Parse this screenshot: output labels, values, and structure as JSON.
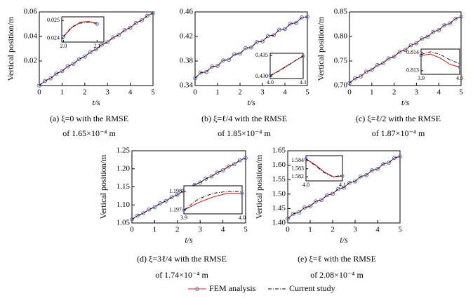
{
  "legend": [
    "FEM analysis",
    "Current study"
  ],
  "chart_data": [
    {
      "type": "line",
      "ylabel": "Vertical position/m",
      "xlabel": "t/s",
      "caption": [
        "(a) ξ=0 with the RMSE",
        "of 1.65×10⁻⁴ m"
      ],
      "xlim": [
        0,
        5
      ],
      "xticks": [
        0,
        1,
        2,
        3,
        4,
        5
      ],
      "ylim": [
        0,
        0.06
      ],
      "yticks": [
        0.02,
        0.04,
        0.06
      ],
      "x": [
        0,
        0.25,
        0.5,
        0.75,
        1,
        1.25,
        1.5,
        1.75,
        2,
        2.25,
        2.5,
        2.75,
        3,
        3.25,
        3.5,
        3.75,
        4,
        4.25,
        4.5,
        4.75,
        5
      ],
      "series": [
        {
          "color": "#d62728",
          "marker_color": "#5470c6",
          "values": [
            0,
            0.0038,
            0.0059,
            0.0097,
            0.0118,
            0.0156,
            0.0177,
            0.0215,
            0.0236,
            0.0274,
            0.0295,
            0.0333,
            0.0354,
            0.0392,
            0.0413,
            0.0451,
            0.0472,
            0.051,
            0.0531,
            0.0569,
            0.059
          ]
        },
        {
          "color": "#000000",
          "dash": "dash-dot",
          "values": [
            0,
            0.0038,
            0.0059,
            0.0097,
            0.0118,
            0.0156,
            0.0177,
            0.0215,
            0.0236,
            0.0274,
            0.0295,
            0.0333,
            0.0354,
            0.0392,
            0.0413,
            0.0451,
            0.0472,
            0.051,
            0.0531,
            0.0569,
            0.059
          ]
        }
      ],
      "inset": {
        "xlim": [
          1.995,
          2.12
        ],
        "xticks": [
          {
            "value": 2,
            "label": "2.0"
          },
          2.1
        ],
        "ylim": [
          0.0238,
          0.0252
        ],
        "yticks": [
          0.025,
          0.024
        ],
        "x": [
          2.0,
          2.025,
          2.05,
          2.075,
          2.1
        ],
        "series": [
          {
            "color": "#d62728",
            "marker_color": "#5470c6",
            "values": [
              0.0241,
              0.0246,
              0.0249,
              0.02495,
              0.0248
            ]
          },
          {
            "color": "#000000",
            "dash": "dash-dot",
            "values": [
              0.0241,
              0.02465,
              0.02485,
              0.0249,
              0.02485
            ]
          }
        ]
      }
    },
    {
      "type": "line",
      "xlabel": "t/s",
      "caption": [
        "(b) ξ=ℓ/4 with the RMSE",
        "of 1.85×10⁻⁴ m"
      ],
      "xlim": [
        0,
        5
      ],
      "xticks": [
        0,
        1,
        2,
        3,
        4,
        5
      ],
      "ylim": [
        0.34,
        0.46
      ],
      "yticks": [
        0.34,
        0.38,
        0.42,
        0.46
      ],
      "x": [
        0,
        0.25,
        0.5,
        0.75,
        1,
        1.25,
        1.5,
        1.75,
        2,
        2.25,
        2.5,
        2.75,
        3,
        3.25,
        3.5,
        3.75,
        4,
        4.25,
        4.5,
        4.75,
        5
      ],
      "series": [
        {
          "color": "#d62728",
          "marker_color": "#5470c6",
          "values": [
            0.352,
            0.361,
            0.362,
            0.371,
            0.372,
            0.381,
            0.382,
            0.391,
            0.392,
            0.401,
            0.402,
            0.411,
            0.412,
            0.421,
            0.422,
            0.431,
            0.432,
            0.441,
            0.442,
            0.451,
            0.452
          ]
        },
        {
          "color": "#000000",
          "dash": "dash-dot",
          "values": [
            0.352,
            0.361,
            0.362,
            0.371,
            0.372,
            0.381,
            0.382,
            0.391,
            0.392,
            0.401,
            0.402,
            0.411,
            0.412,
            0.421,
            0.422,
            0.431,
            0.432,
            0.441,
            0.442,
            0.451,
            0.452
          ]
        }
      ],
      "inset": {
        "xlim": [
          4.0,
          4.1
        ],
        "xticks": [
          {
            "value": 4,
            "label": "4.0"
          },
          4.1
        ],
        "ylim": [
          0.4295,
          0.4355
        ],
        "yticks": [
          {
            "value": 0.43,
            "label": "0.430"
          },
          0.435
        ],
        "x": [
          4.0,
          4.025,
          4.05,
          4.075,
          4.1
        ],
        "series": [
          {
            "color": "#d62728",
            "marker_color": "#5470c6",
            "values": [
              0.4302,
              0.4313,
              0.4325,
              0.4337,
              0.4348
            ]
          },
          {
            "color": "#000000",
            "dash": "dash-dot",
            "values": [
              0.4301,
              0.4312,
              0.4324,
              0.4337,
              0.4349
            ]
          }
        ]
      }
    },
    {
      "type": "line",
      "ylabel": "Vertical position/m",
      "xlabel": "t/s",
      "caption": [
        "(c) ξ=ℓ/2 with the RMSE",
        "of 1.87×10⁻⁴ m"
      ],
      "xlim": [
        0,
        5
      ],
      "xticks": [
        0,
        1,
        2,
        3,
        4,
        5
      ],
      "ylim": [
        0.7,
        0.85
      ],
      "yticks": [
        {
          "value": 0.7,
          "label": "0.70"
        },
        0.75,
        {
          "value": 0.8,
          "label": "0.80"
        },
        0.85
      ],
      "x": [
        0,
        0.25,
        0.5,
        0.75,
        1,
        1.25,
        1.5,
        1.75,
        2,
        2.25,
        2.5,
        2.75,
        3,
        3.25,
        3.5,
        3.75,
        4,
        4.25,
        4.5,
        4.75,
        5
      ],
      "series": [
        {
          "color": "#d62728",
          "marker_color": "#5470c6",
          "values": [
            0.705,
            0.7148,
            0.7185,
            0.7283,
            0.732,
            0.7418,
            0.7455,
            0.7553,
            0.759,
            0.7688,
            0.7725,
            0.7823,
            0.786,
            0.7958,
            0.7995,
            0.8093,
            0.813,
            0.8228,
            0.8265,
            0.8363,
            0.84
          ]
        },
        {
          "color": "#000000",
          "dash": "dash-dot",
          "values": [
            0.705,
            0.7148,
            0.7185,
            0.7283,
            0.732,
            0.7418,
            0.7455,
            0.7553,
            0.759,
            0.7688,
            0.7725,
            0.7823,
            0.786,
            0.7958,
            0.7995,
            0.8093,
            0.813,
            0.8228,
            0.8265,
            0.8363,
            0.84
          ]
        }
      ],
      "inset": {
        "xlim": [
          3.9,
          4.0
        ],
        "xticks": [
          3.9,
          {
            "value": 4,
            "label": "4.0"
          }
        ],
        "ylim": [
          0.8128,
          0.8142
        ],
        "yticks": [
          0.814,
          0.813
        ],
        "x": [
          3.9,
          3.925,
          3.95,
          3.975,
          4.0
        ],
        "series": [
          {
            "color": "#d62728",
            "marker_color": "#5470c6",
            "values": [
              0.81385,
              0.81392,
              0.8137,
              0.81335,
              0.8132
            ]
          },
          {
            "color": "#000000",
            "dash": "dash-dot",
            "values": [
              0.8139,
              0.81405,
              0.8139,
              0.8136,
              0.8134
            ]
          }
        ]
      }
    },
    {
      "type": "line",
      "ylabel": "Vertical position/m",
      "xlabel": "t/s",
      "caption": [
        "(d) ξ=3ℓ/4 with the RMSE",
        "of 1.74×10⁻⁴ m"
      ],
      "xlim": [
        0,
        5
      ],
      "xticks": [
        0,
        1,
        2,
        3,
        4,
        5
      ],
      "ylim": [
        1.05,
        1.25
      ],
      "yticks": [
        1.05,
        {
          "value": 1.1,
          "label": "1.10"
        },
        1.15,
        {
          "value": 1.2,
          "label": "1.20"
        },
        1.25
      ],
      "x": [
        0,
        0.25,
        0.5,
        0.75,
        1,
        1.25,
        1.5,
        1.75,
        2,
        2.25,
        2.5,
        2.75,
        3,
        3.25,
        3.5,
        3.75,
        4,
        4.25,
        4.5,
        4.75,
        5
      ],
      "series": [
        {
          "color": "#d62728",
          "marker_color": "#5470c6",
          "values": [
            1.06,
            1.0705,
            1.077,
            1.0875,
            1.094,
            1.1045,
            1.111,
            1.1215,
            1.128,
            1.1385,
            1.145,
            1.1555,
            1.162,
            1.1725,
            1.179,
            1.1895,
            1.196,
            1.2065,
            1.213,
            1.2235,
            1.23
          ]
        },
        {
          "color": "#000000",
          "dash": "dash-dot",
          "values": [
            1.06,
            1.0705,
            1.077,
            1.0875,
            1.094,
            1.1045,
            1.111,
            1.1215,
            1.128,
            1.1385,
            1.145,
            1.1555,
            1.162,
            1.1725,
            1.179,
            1.1895,
            1.196,
            1.2065,
            1.213,
            1.2235,
            1.23
          ]
        }
      ],
      "inset": {
        "xlim": [
          3.9,
          4.0
        ],
        "xticks": [
          3.9,
          {
            "value": 4,
            "label": "4.0"
          }
        ],
        "ylim": [
          1.1968,
          1.1983
        ],
        "yticks": [
          1.198,
          1.197
        ],
        "x": [
          3.9,
          3.925,
          3.95,
          3.975,
          4.0
        ],
        "series": [
          {
            "color": "#d62728",
            "marker_color": "#5470c6",
            "values": [
              1.197,
              1.1974,
              1.1977,
              1.1979,
              1.1979
            ]
          },
          {
            "color": "#000000",
            "dash": "dash-dot",
            "values": [
              1.197,
              1.1976,
              1.1979,
              1.198,
              1.198
            ]
          }
        ]
      }
    },
    {
      "type": "line",
      "ylabel": "Vertical position/m",
      "xlabel": "t/s",
      "caption": [
        "(e) ξ=ℓ with the RMSE",
        "of 2.08×10⁻⁴ m"
      ],
      "xlim": [
        0,
        5
      ],
      "xticks": [
        0,
        1,
        2,
        3,
        4,
        5
      ],
      "ylim": [
        1.4,
        1.65
      ],
      "yticks": [
        {
          "value": 1.4,
          "label": "1.40"
        },
        1.45,
        {
          "value": 1.5,
          "label": "1.50"
        },
        1.55,
        {
          "value": 1.6,
          "label": "1.60"
        },
        1.65
      ],
      "x": [
        0,
        0.25,
        0.5,
        0.75,
        1,
        1.25,
        1.5,
        1.75,
        2,
        2.25,
        2.5,
        2.75,
        3,
        3.25,
        3.5,
        3.75,
        4,
        4.25,
        4.5,
        4.75,
        5
      ],
      "series": [
        {
          "color": "#d62728",
          "marker_color": "#5470c6",
          "values": [
            1.415,
            1.4318,
            1.4365,
            1.4533,
            1.458,
            1.4748,
            1.4795,
            1.4963,
            1.501,
            1.5178,
            1.5225,
            1.5393,
            1.544,
            1.5608,
            1.5655,
            1.5823,
            1.587,
            1.6038,
            1.6085,
            1.6253,
            1.63
          ]
        },
        {
          "color": "#000000",
          "dash": "dash-dot",
          "values": [
            1.415,
            1.4318,
            1.4365,
            1.4533,
            1.458,
            1.4748,
            1.4795,
            1.4963,
            1.501,
            1.5178,
            1.5225,
            1.5393,
            1.544,
            1.5608,
            1.5655,
            1.5823,
            1.587,
            1.6038,
            1.6085,
            1.6253,
            1.63
          ]
        }
      ],
      "inset": {
        "xlim": [
          4.0,
          4.1
        ],
        "xticks": [
          {
            "value": 4,
            "label": "4.0"
          },
          4.1
        ],
        "ylim": [
          1.5815,
          1.5846
        ],
        "yticks": [
          1.584,
          1.583,
          1.582
        ],
        "x": [
          4.0,
          4.025,
          4.05,
          4.075,
          4.1
        ],
        "series": [
          {
            "color": "#d62728",
            "marker_color": "#5470c6",
            "values": [
              1.5842,
              1.5835,
              1.5826,
              1.582,
              1.5821
            ]
          },
          {
            "color": "#000000",
            "dash": "dash-dot",
            "values": [
              1.5842,
              1.5834,
              1.5825,
              1.582,
              1.5822
            ]
          }
        ]
      }
    }
  ]
}
